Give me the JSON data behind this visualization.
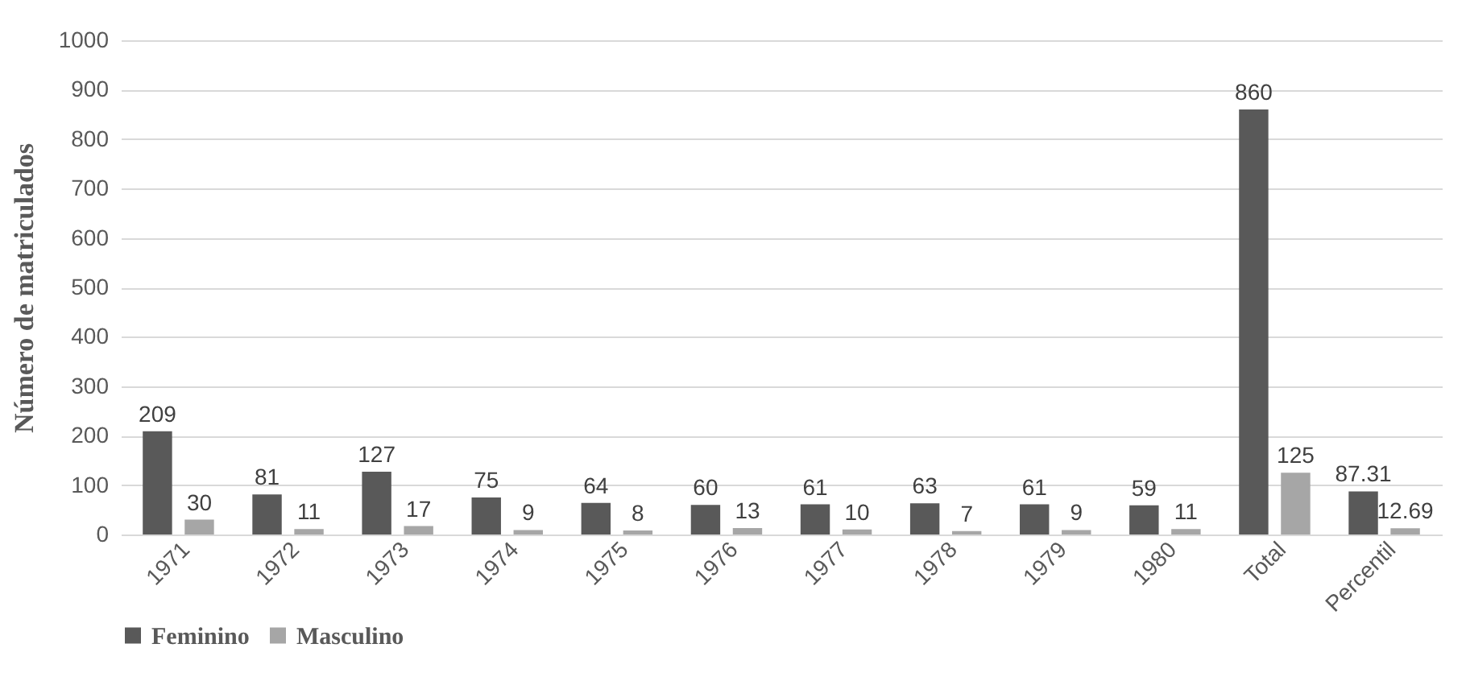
{
  "chart_data": {
    "type": "bar",
    "ylabel": "Número de matriculados",
    "categories": [
      "1971",
      "1972",
      "1973",
      "1974",
      "1975",
      "1976",
      "1977",
      "1978",
      "1979",
      "1980",
      "Total",
      "Percentil"
    ],
    "series": [
      {
        "name": "Feminino",
        "color": "#595959",
        "values": [
          209,
          81,
          127,
          75,
          64,
          60,
          61,
          63,
          61,
          59,
          860,
          87.31
        ]
      },
      {
        "name": "Masculino",
        "color": "#a6a6a6",
        "values": [
          30,
          11,
          17,
          9,
          8,
          13,
          10,
          7,
          9,
          11,
          125,
          12.69
        ]
      }
    ],
    "ylim": [
      0,
      1000
    ],
    "yticks": [
      0,
      100,
      200,
      300,
      400,
      500,
      600,
      700,
      800,
      900,
      1000
    ],
    "grid": "y",
    "legend": "bottom",
    "data_labels": true
  }
}
